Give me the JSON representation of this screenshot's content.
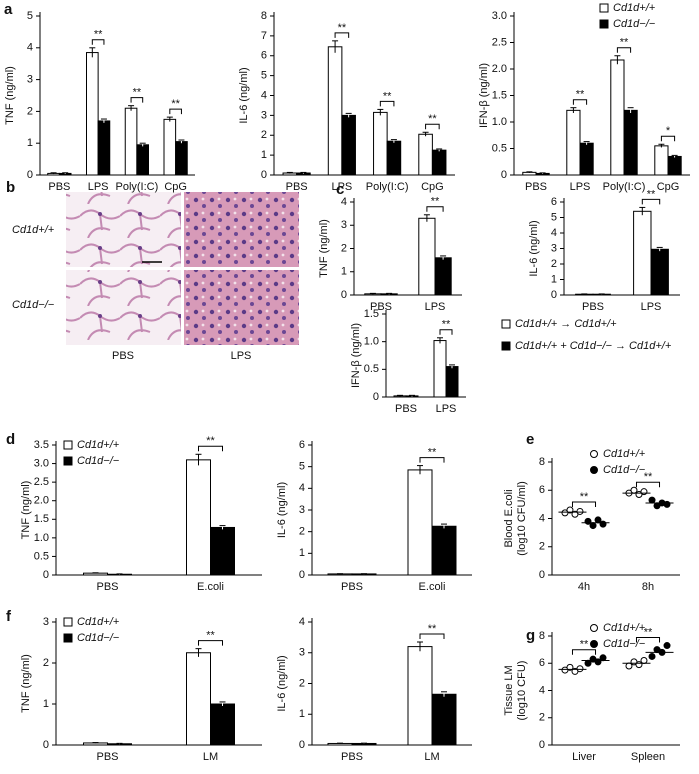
{
  "chart_data": [
    {
      "type": "bar",
      "panel": "a",
      "ylabel": "TNF (ng/ml)",
      "categories": [
        "PBS",
        "LPS",
        "Poly(I:C)",
        "CpG"
      ],
      "series": [
        {
          "name": "Cd1d+/+",
          "color": "#ffffff",
          "values": [
            0.05,
            3.85,
            2.1,
            1.75
          ],
          "errors": [
            0.02,
            0.15,
            0.08,
            0.07
          ]
        },
        {
          "name": "Cd1d−/−",
          "color": "#000000",
          "values": [
            0.05,
            1.7,
            0.95,
            1.05
          ],
          "errors": [
            0.02,
            0.06,
            0.05,
            0.05
          ]
        }
      ],
      "significance": [
        null,
        "**",
        "**",
        "**"
      ],
      "ylim": [
        0,
        5
      ],
      "yticks": [
        0,
        1,
        2,
        3,
        4,
        5
      ]
    },
    {
      "type": "bar",
      "ylabel": "IL-6 (ng/ml)",
      "categories": [
        "PBS",
        "LPS",
        "Poly(I:C)",
        "CpG"
      ],
      "series": [
        {
          "name": "Cd1d+/+",
          "color": "#ffffff",
          "values": [
            0.1,
            6.45,
            3.15,
            2.05
          ],
          "errors": [
            0.03,
            0.3,
            0.15,
            0.1
          ]
        },
        {
          "name": "Cd1d−/−",
          "color": "#000000",
          "values": [
            0.1,
            3.0,
            1.7,
            1.25
          ],
          "errors": [
            0.03,
            0.1,
            0.08,
            0.06
          ]
        }
      ],
      "significance": [
        null,
        "**",
        "**",
        "**"
      ],
      "ylim": [
        0,
        8
      ],
      "yticks": [
        0,
        1,
        2,
        3,
        4,
        5,
        6,
        7,
        8
      ]
    },
    {
      "type": "bar",
      "ylabel": "IFN-β (ng/ml)",
      "categories": [
        "PBS",
        "LPS",
        "Poly(I:C)",
        "CpG"
      ],
      "legend": "upper right",
      "series": [
        {
          "name": "Cd1d+/+",
          "color": "#ffffff",
          "values": [
            0.05,
            1.22,
            2.17,
            0.55
          ],
          "errors": [
            0.01,
            0.05,
            0.08,
            0.03
          ]
        },
        {
          "name": "Cd1d−/−",
          "color": "#000000",
          "values": [
            0.03,
            0.6,
            1.22,
            0.35
          ],
          "errors": [
            0.01,
            0.03,
            0.05,
            0.02
          ]
        }
      ],
      "significance": [
        null,
        "**",
        "**",
        "*"
      ],
      "ylim": [
        0,
        3
      ],
      "yticks": [
        0,
        0.5,
        {
          "value": 1,
          "label": "1.0"
        },
        1.5,
        {
          "value": 2,
          "label": "2.0"
        },
        2.5,
        {
          "value": 3,
          "label": "3.0"
        }
      ]
    },
    {
      "type": "bar",
      "panel": "c",
      "ylabel": "TNF (ng/ml)",
      "categories": [
        "PBS",
        "LPS"
      ],
      "series": [
        {
          "name": "Cd1d+/+ → Cd1d+/+",
          "color": "#ffffff",
          "values": [
            0.05,
            3.3
          ],
          "errors": [
            0.02,
            0.15
          ]
        },
        {
          "name": "Cd1d+/+ + Cd1d−/− → Cd1d+/+",
          "color": "#000000",
          "values": [
            0.05,
            1.6
          ],
          "errors": [
            0.02,
            0.08
          ]
        }
      ],
      "significance": [
        null,
        "**"
      ],
      "ylim": [
        0,
        4
      ],
      "yticks": [
        0,
        1,
        2,
        3,
        4
      ]
    },
    {
      "type": "bar",
      "ylabel": "IL-6 (ng/ml)",
      "categories": [
        "PBS",
        "LPS"
      ],
      "series": [
        {
          "name": "Cd1d+/+ → Cd1d+/+",
          "color": "#ffffff",
          "values": [
            0.05,
            5.4
          ],
          "errors": [
            0.02,
            0.25
          ]
        },
        {
          "name": "Cd1d+/+ + Cd1d−/− → Cd1d+/+",
          "color": "#000000",
          "values": [
            0.05,
            2.95
          ],
          "errors": [
            0.02,
            0.12
          ]
        }
      ],
      "significance": [
        null,
        "**"
      ],
      "ylim": [
        0,
        6
      ],
      "yticks": [
        0,
        1,
        2,
        3,
        4,
        5,
        6
      ]
    },
    {
      "type": "bar",
      "ylabel": "IFN-β (ng/ml)",
      "categories": [
        "PBS",
        "LPS"
      ],
      "legend": "right",
      "series": [
        {
          "name": "Cd1d+/+ → Cd1d+/+",
          "color": "#ffffff",
          "values": [
            0.02,
            1.02
          ],
          "errors": [
            0.01,
            0.05
          ]
        },
        {
          "name": "Cd1d+/+ + Cd1d−/− → Cd1d+/+",
          "color": "#000000",
          "values": [
            0.02,
            0.55
          ],
          "errors": [
            0.01,
            0.03
          ]
        }
      ],
      "significance": [
        null,
        "**"
      ],
      "ylim": [
        0,
        1.5
      ],
      "yticks": [
        0,
        0.5,
        {
          "value": 1,
          "label": "1.0"
        },
        1.5
      ]
    },
    {
      "type": "bar",
      "panel": "d",
      "ylabel": "TNF (ng/ml)",
      "categories": [
        "PBS",
        "E.coli"
      ],
      "legend": "upper left",
      "series": [
        {
          "name": "Cd1d+/+",
          "color": "#ffffff",
          "values": [
            0.05,
            3.1
          ],
          "errors": [
            0.01,
            0.15
          ]
        },
        {
          "name": "Cd1d−/−",
          "color": "#000000",
          "values": [
            0.02,
            1.28
          ],
          "errors": [
            0.01,
            0.05
          ]
        }
      ],
      "significance": [
        null,
        "**"
      ],
      "ylim": [
        0,
        3.5
      ],
      "yticks": [
        0,
        0.5,
        {
          "value": 1,
          "label": "1.0"
        },
        1.5,
        {
          "value": 2,
          "label": "2.0"
        },
        2.5,
        {
          "value": 3,
          "label": "3.0"
        },
        3.5
      ]
    },
    {
      "type": "bar",
      "ylabel": "IL-6 (ng/ml)",
      "categories": [
        "PBS",
        "E.coli"
      ],
      "series": [
        {
          "name": "Cd1d+/+",
          "color": "#ffffff",
          "values": [
            0.05,
            4.85
          ],
          "errors": [
            0.01,
            0.2
          ]
        },
        {
          "name": "Cd1d−/−",
          "color": "#000000",
          "values": [
            0.05,
            2.25
          ],
          "errors": [
            0.01,
            0.1
          ]
        }
      ],
      "significance": [
        null,
        "**"
      ],
      "ylim": [
        0,
        6
      ],
      "yticks": [
        0,
        1,
        2,
        3,
        4,
        5,
        6
      ]
    },
    {
      "type": "dot",
      "panel": "e",
      "ylabel": [
        "Blood E.coli",
        "(log10 CFU/ml)"
      ],
      "categories": [
        "4h",
        "8h"
      ],
      "legend": "upper right",
      "series": [
        {
          "name": "Cd1d+/+",
          "color": "#ffffff",
          "values": [
            [
              4.4,
              4.6,
              4.3,
              4.5
            ],
            [
              5.8,
              6.0,
              5.7,
              5.9
            ]
          ],
          "means": [
            4.45,
            5.8
          ]
        },
        {
          "name": "Cd1d−/−",
          "color": "#000000",
          "values": [
            [
              3.8,
              3.5,
              3.9,
              3.6
            ],
            [
              5.3,
              4.9,
              5.1,
              5.0
            ]
          ],
          "means": [
            3.7,
            5.1
          ]
        }
      ],
      "significance": [
        "**",
        "**"
      ],
      "ylim": [
        0,
        8
      ],
      "yticks": [
        0,
        2,
        4,
        6,
        8
      ]
    },
    {
      "type": "bar",
      "panel": "f",
      "ylabel": "TNF (ng/ml)",
      "categories": [
        "PBS",
        "LM"
      ],
      "legend": "upper left",
      "series": [
        {
          "name": "Cd1d+/+",
          "color": "#ffffff",
          "values": [
            0.05,
            2.25
          ],
          "errors": [
            0.01,
            0.1
          ]
        },
        {
          "name": "Cd1d−/−",
          "color": "#000000",
          "values": [
            0.03,
            1.0
          ],
          "errors": [
            0.01,
            0.05
          ]
        }
      ],
      "significance": [
        null,
        "**"
      ],
      "ylim": [
        0,
        3
      ],
      "yticks": [
        0,
        1,
        2,
        3
      ]
    },
    {
      "type": "bar",
      "ylabel": "IL-6 (ng/ml)",
      "categories": [
        "PBS",
        "LM"
      ],
      "series": [
        {
          "name": "Cd1d+/+",
          "color": "#ffffff",
          "values": [
            0.05,
            3.2
          ],
          "errors": [
            0.01,
            0.15
          ]
        },
        {
          "name": "Cd1d−/−",
          "color": "#000000",
          "values": [
            0.05,
            1.65
          ],
          "errors": [
            0.01,
            0.08
          ]
        }
      ],
      "significance": [
        null,
        "**"
      ],
      "ylim": [
        0,
        4
      ],
      "yticks": [
        0,
        1,
        2,
        3,
        4
      ]
    },
    {
      "type": "dot",
      "panel": "g",
      "ylabel": [
        "Tissue LM",
        "(log10 CFU)"
      ],
      "categories": [
        "Liver",
        "Spleen"
      ],
      "legend": "upper right",
      "series": [
        {
          "name": "Cd1d+/+",
          "color": "#ffffff",
          "values": [
            [
              5.5,
              5.7,
              5.4,
              5.6
            ],
            [
              5.8,
              6.1,
              5.9,
              6.2
            ]
          ],
          "means": [
            5.55,
            6.0
          ]
        },
        {
          "name": "Cd1d−/−",
          "color": "#000000",
          "values": [
            [
              6.0,
              6.3,
              6.1,
              6.4
            ],
            [
              6.5,
              7.0,
              6.8,
              7.3
            ]
          ],
          "means": [
            6.2,
            6.8
          ]
        }
      ],
      "significance": [
        "**",
        "**"
      ],
      "ylim": [
        0,
        8
      ],
      "yticks": [
        0,
        2,
        4,
        6,
        8
      ]
    }
  ],
  "histology": {
    "panel": "b",
    "rows": [
      "Cd1d+/+",
      "Cd1d−/−"
    ],
    "columns": [
      "PBS",
      "LPS"
    ]
  }
}
